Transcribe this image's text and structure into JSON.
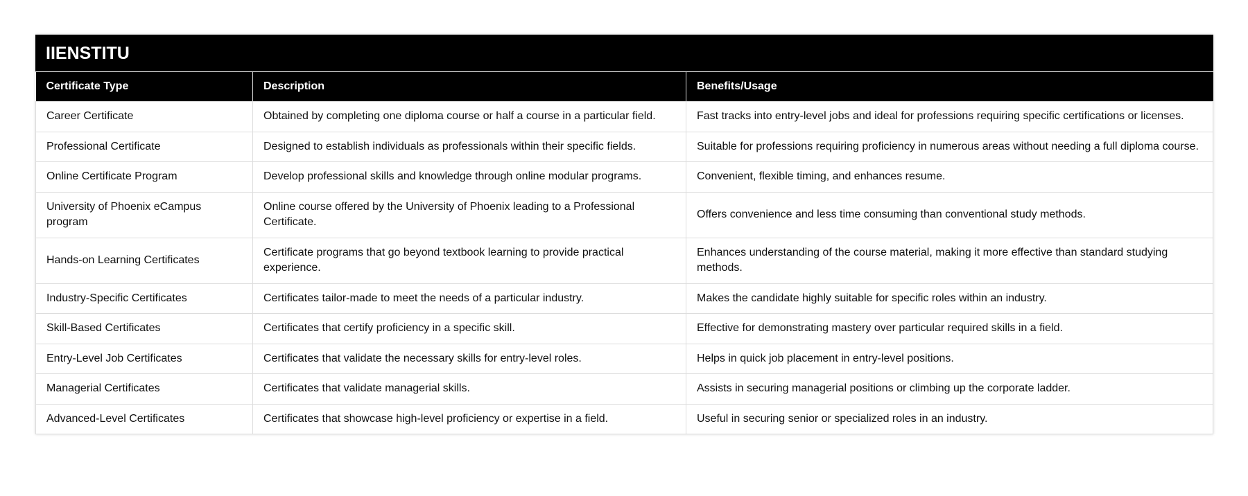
{
  "title": "IIENSTITU",
  "columns": [
    "Certificate Type",
    "Description",
    "Benefits/Usage"
  ],
  "rows": [
    [
      "Career Certificate",
      "Obtained by completing one diploma course or half a course in a particular field.",
      "Fast tracks into entry-level jobs and ideal for professions requiring specific certifications or licenses."
    ],
    [
      "Professional Certificate",
      "Designed to establish individuals as professionals within their specific fields.",
      "Suitable for professions requiring proficiency in numerous areas without needing a full diploma course."
    ],
    [
      "Online Certificate Program",
      "Develop professional skills and knowledge through online modular programs.",
      "Convenient, flexible timing, and enhances resume."
    ],
    [
      "University of Phoenix eCampus program",
      "Online course offered by the University of Phoenix leading to a Professional Certificate.",
      "Offers convenience and less time consuming than conventional study methods."
    ],
    [
      "Hands-on Learning Certificates",
      "Certificate programs that go beyond textbook learning to provide practical experience.",
      "Enhances understanding of the course material, making it more effective than standard studying methods."
    ],
    [
      "Industry-Specific Certificates",
      "Certificates tailor-made to meet the needs of a particular industry.",
      "Makes the candidate highly suitable for specific roles within an industry."
    ],
    [
      "Skill-Based Certificates",
      "Certificates that certify proficiency in a specific skill.",
      "Effective for demonstrating mastery over particular required skills in a field."
    ],
    [
      "Entry-Level Job Certificates",
      "Certificates that validate the necessary skills for entry-level roles.",
      "Helps in quick job placement in entry-level positions."
    ],
    [
      "Managerial Certificates",
      "Certificates that validate managerial skills.",
      "Assists in securing managerial positions or climbing up the corporate ladder."
    ],
    [
      "Advanced-Level Certificates",
      "Certificates that showcase high-level proficiency or expertise in a field.",
      "Useful in securing senior or specialized roles in an industry."
    ]
  ]
}
